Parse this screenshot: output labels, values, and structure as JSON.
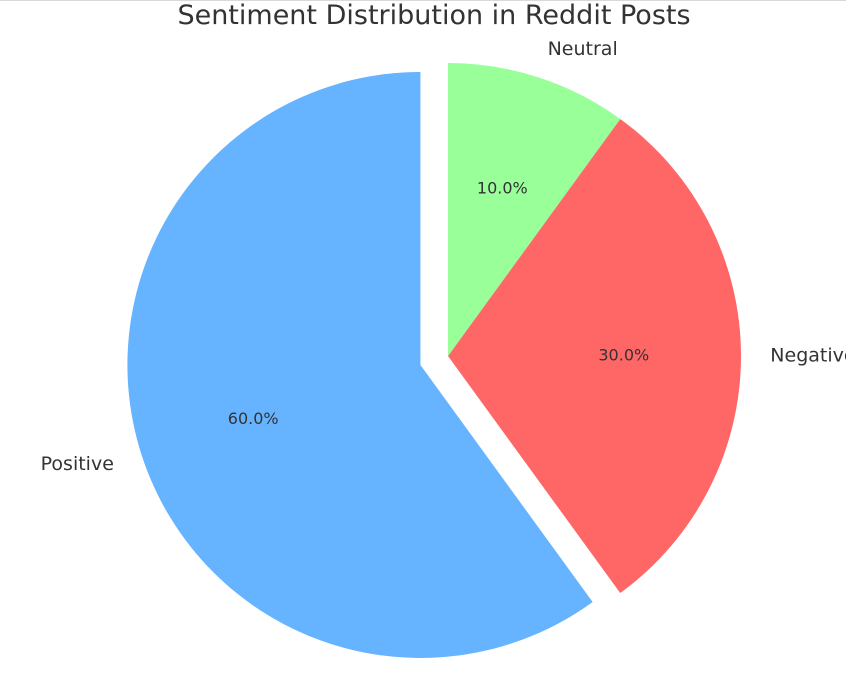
{
  "chart_data": {
    "type": "pie",
    "title": "Sentiment Distribution in Reddit Posts",
    "slices": [
      {
        "label": "Positive",
        "value": 60.0,
        "pct_label": "60.0%",
        "color": "#66b3ff",
        "exploded": true
      },
      {
        "label": "Negative",
        "value": 30.0,
        "pct_label": "30.0%",
        "color": "#ff6666",
        "exploded": false
      },
      {
        "label": "Neutral",
        "value": 10.0,
        "pct_label": "10.0%",
        "color": "#99ff99",
        "exploded": false
      }
    ],
    "start_angle": 90,
    "direction": "counterclockwise",
    "legend": "none",
    "grid": false
  }
}
